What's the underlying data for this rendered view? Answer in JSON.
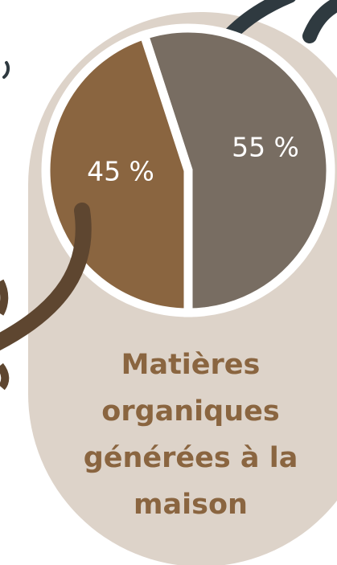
{
  "chart_data": {
    "type": "pie",
    "title": "Matières organiques générées à la maison",
    "values": [
      55,
      45
    ],
    "value_labels": [
      "55 %",
      "45 %"
    ],
    "colors": [
      "#786d62",
      "#8a6540"
    ]
  }
}
